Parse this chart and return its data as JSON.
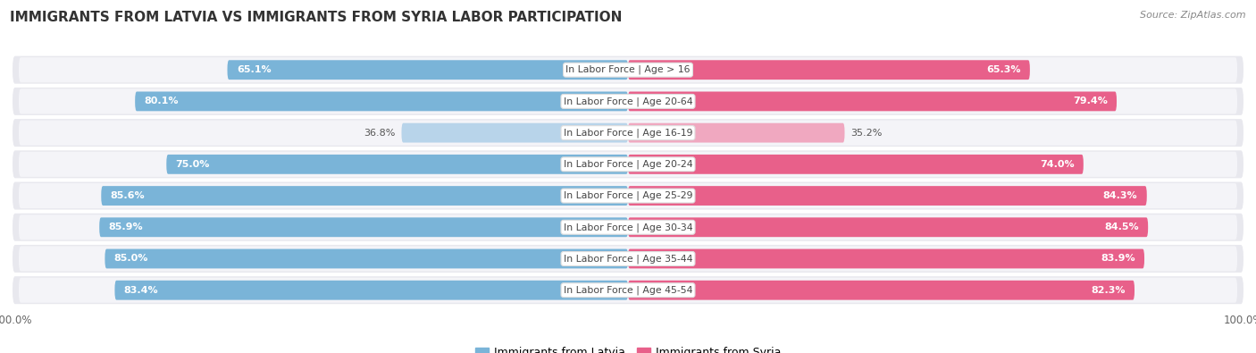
{
  "title": "IMMIGRANTS FROM LATVIA VS IMMIGRANTS FROM SYRIA LABOR PARTICIPATION",
  "source": "Source: ZipAtlas.com",
  "categories": [
    "In Labor Force | Age > 16",
    "In Labor Force | Age 20-64",
    "In Labor Force | Age 16-19",
    "In Labor Force | Age 20-24",
    "In Labor Force | Age 25-29",
    "In Labor Force | Age 30-34",
    "In Labor Force | Age 35-44",
    "In Labor Force | Age 45-54"
  ],
  "latvia_values": [
    65.1,
    80.1,
    36.8,
    75.0,
    85.6,
    85.9,
    85.0,
    83.4
  ],
  "syria_values": [
    65.3,
    79.4,
    35.2,
    74.0,
    84.3,
    84.5,
    83.9,
    82.3
  ],
  "latvia_color": "#7ab4d8",
  "latvia_light_color": "#b8d4ea",
  "syria_color": "#e8608a",
  "syria_light_color": "#f0a8c0",
  "row_bg_color": "#e8e8ee",
  "row_inner_bg": "#f4f4f8",
  "max_value": 100.0,
  "legend_latvia": "Immigrants from Latvia",
  "legend_syria": "Immigrants from Syria",
  "title_fontsize": 11,
  "value_fontsize": 8,
  "label_fontsize": 7.8,
  "source_fontsize": 8
}
